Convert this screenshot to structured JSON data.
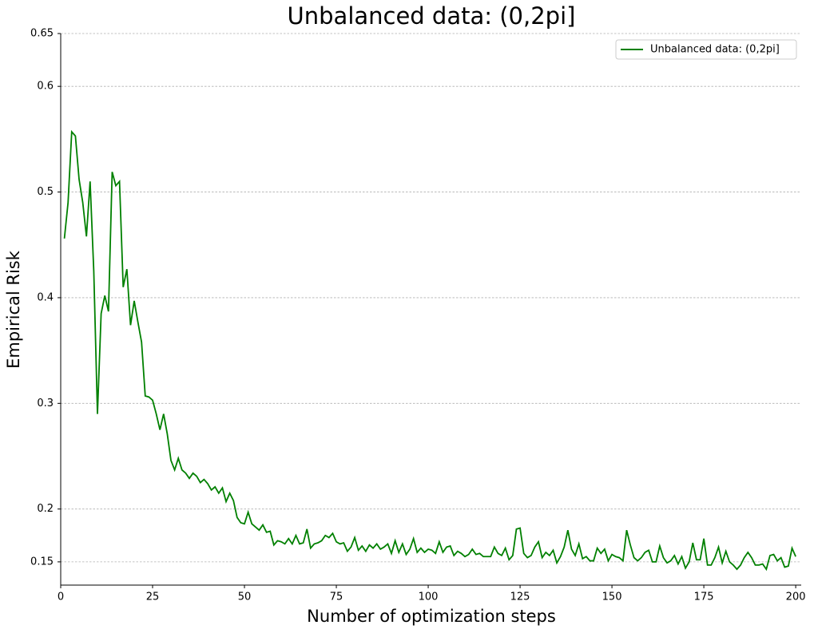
{
  "chart_data": {
    "type": "line",
    "title": "Unbalanced data: (0,2pi]",
    "x_label": "Number of optimization steps",
    "y_label": "Empirical Risk",
    "xlim": [
      0,
      201.5
    ],
    "ylim": [
      0.128,
      0.65
    ],
    "xticks": [
      0,
      25,
      50,
      75,
      100,
      125,
      150,
      175,
      200
    ],
    "yticks": [
      0.15,
      0.2,
      0.3,
      0.4,
      0.5,
      0.6,
      0.65
    ],
    "grid": true,
    "legend": "upper right",
    "x": [
      1,
      2,
      3,
      4,
      5,
      6,
      7,
      8,
      9,
      10,
      11,
      12,
      13,
      14,
      15,
      16,
      17,
      18,
      19,
      20,
      21,
      22,
      23,
      24,
      25,
      26,
      27,
      28,
      29,
      30,
      31,
      32,
      33,
      34,
      35,
      36,
      37,
      38,
      39,
      40,
      41,
      42,
      43,
      44,
      45,
      46,
      47,
      48,
      49,
      50,
      51,
      52,
      53,
      54,
      55,
      56,
      57,
      58,
      59,
      60,
      61,
      62,
      63,
      64,
      65,
      66,
      67,
      68,
      69,
      70,
      71,
      72,
      73,
      74,
      75,
      76,
      77,
      78,
      79,
      80,
      81,
      82,
      83,
      84,
      85,
      86,
      87,
      88,
      89,
      90,
      91,
      92,
      93,
      94,
      95,
      96,
      97,
      98,
      99,
      100,
      101,
      102,
      103,
      104,
      105,
      106,
      107,
      108,
      109,
      110,
      111,
      112,
      113,
      114,
      115,
      116,
      117,
      118,
      119,
      120,
      121,
      122,
      123,
      124,
      125,
      126,
      127,
      128,
      129,
      130,
      131,
      132,
      133,
      134,
      135,
      136,
      137,
      138,
      139,
      140,
      141,
      142,
      143,
      144,
      145,
      146,
      147,
      148,
      149,
      150,
      151,
      152,
      153,
      154,
      155,
      156,
      157,
      158,
      159,
      160,
      161,
      162,
      163,
      164,
      165,
      166,
      167,
      168,
      169,
      170,
      171,
      172,
      173,
      174,
      175,
      176,
      177,
      178,
      179,
      180,
      181,
      182,
      183,
      184,
      185,
      186,
      187,
      188,
      189,
      190,
      191,
      192,
      193,
      194,
      195,
      196,
      197,
      198,
      199,
      200
    ],
    "series": [
      {
        "name": "Unbalanced data: (0,2pi]",
        "color": "#008000",
        "values": [
          0.456,
          0.49,
          0.557,
          0.553,
          0.512,
          0.49,
          0.458,
          0.51,
          0.425,
          0.29,
          0.385,
          0.402,
          0.387,
          0.519,
          0.506,
          0.51,
          0.41,
          0.427,
          0.374,
          0.397,
          0.377,
          0.358,
          0.307,
          0.306,
          0.303,
          0.29,
          0.275,
          0.29,
          0.271,
          0.246,
          0.237,
          0.248,
          0.237,
          0.234,
          0.229,
          0.234,
          0.231,
          0.225,
          0.228,
          0.224,
          0.218,
          0.221,
          0.215,
          0.22,
          0.207,
          0.215,
          0.208,
          0.192,
          0.187,
          0.186,
          0.197,
          0.186,
          0.183,
          0.18,
          0.185,
          0.178,
          0.179,
          0.166,
          0.17,
          0.169,
          0.167,
          0.172,
          0.167,
          0.175,
          0.167,
          0.168,
          0.181,
          0.163,
          0.167,
          0.168,
          0.17,
          0.175,
          0.173,
          0.177,
          0.169,
          0.167,
          0.168,
          0.16,
          0.164,
          0.173,
          0.161,
          0.165,
          0.16,
          0.166,
          0.163,
          0.167,
          0.162,
          0.164,
          0.167,
          0.158,
          0.17,
          0.159,
          0.167,
          0.157,
          0.162,
          0.172,
          0.159,
          0.163,
          0.159,
          0.162,
          0.161,
          0.158,
          0.169,
          0.159,
          0.164,
          0.165,
          0.156,
          0.16,
          0.158,
          0.155,
          0.157,
          0.162,
          0.157,
          0.158,
          0.155,
          0.155,
          0.155,
          0.164,
          0.158,
          0.156,
          0.163,
          0.152,
          0.156,
          0.181,
          0.182,
          0.158,
          0.154,
          0.156,
          0.164,
          0.169,
          0.154,
          0.159,
          0.156,
          0.161,
          0.149,
          0.155,
          0.164,
          0.18,
          0.162,
          0.156,
          0.167,
          0.153,
          0.155,
          0.151,
          0.151,
          0.163,
          0.158,
          0.162,
          0.151,
          0.157,
          0.155,
          0.154,
          0.151,
          0.18,
          0.166,
          0.154,
          0.151,
          0.154,
          0.159,
          0.161,
          0.15,
          0.15,
          0.165,
          0.154,
          0.149,
          0.151,
          0.156,
          0.148,
          0.155,
          0.144,
          0.15,
          0.168,
          0.152,
          0.152,
          0.172,
          0.147,
          0.147,
          0.154,
          0.164,
          0.149,
          0.16,
          0.15,
          0.147,
          0.143,
          0.147,
          0.154,
          0.159,
          0.154,
          0.147,
          0.147,
          0.148,
          0.143,
          0.156,
          0.157,
          0.151,
          0.154,
          0.145,
          0.146,
          0.163,
          0.155
        ]
      }
    ]
  }
}
